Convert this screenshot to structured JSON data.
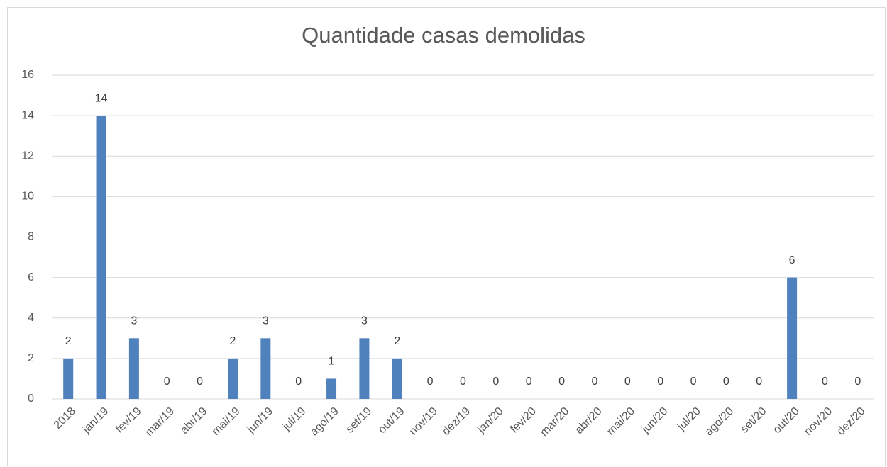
{
  "chart_data": {
    "type": "bar",
    "title": "Quantidade casas demolidas",
    "categories": [
      "2018",
      "jan/19",
      "fev/19",
      "mar/19",
      "abr/19",
      "mai/19",
      "jun/19",
      "jul/19",
      "ago/19",
      "set/19",
      "out/19",
      "nov/19",
      "dez/19",
      "jan/20",
      "fev/20",
      "mar/20",
      "abr/20",
      "mai/20",
      "jun/20",
      "jul/20",
      "ago/20",
      "set/20",
      "out/20",
      "nov/20",
      "dez/20"
    ],
    "values": [
      2,
      14,
      3,
      0,
      0,
      2,
      3,
      0,
      1,
      3,
      2,
      0,
      0,
      0,
      0,
      0,
      0,
      0,
      0,
      0,
      0,
      0,
      6,
      0,
      0
    ],
    "color": "#4f81bd",
    "ylim": [
      0,
      16
    ],
    "yticks": [
      0,
      2,
      4,
      6,
      8,
      10,
      12,
      14,
      16
    ],
    "grid": true
  }
}
